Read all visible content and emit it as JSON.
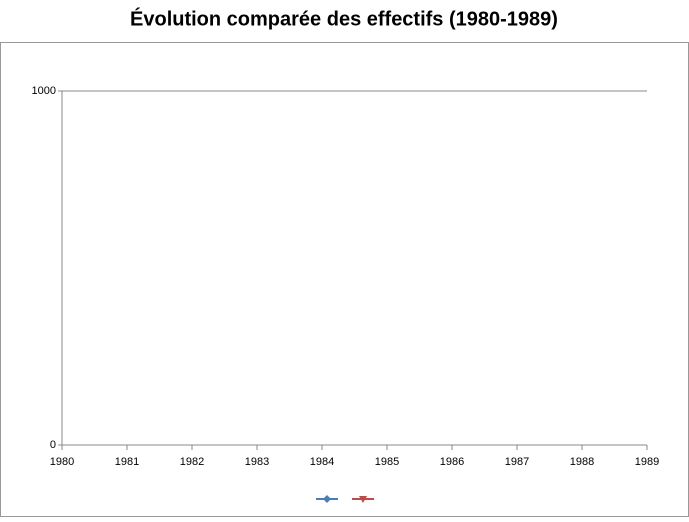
{
  "chart_data": {
    "type": "line",
    "title": "Évolution comparée des effectifs (1980-1989)",
    "x": [
      1980,
      1981,
      1982,
      1983,
      1984,
      1985,
      1986,
      1987,
      1988,
      1989
    ],
    "series": [
      {
        "color": "#4a7ebb",
        "marker": "diamond",
        "values": [
          null,
          null,
          null,
          null,
          null,
          null,
          null,
          null,
          null,
          null
        ]
      },
      {
        "color": "#be4b48",
        "marker": "triangle-down",
        "values": [
          null,
          null,
          null,
          null,
          null,
          null,
          null,
          null,
          null,
          null
        ]
      }
    ],
    "xlim": [
      1980,
      1989
    ],
    "xticks": [
      1980,
      1981,
      1982,
      1983,
      1984,
      1985,
      1986,
      1987,
      1988,
      1989
    ],
    "ylim": [
      0,
      1000
    ],
    "yticks": [
      0,
      1000
    ],
    "grid": true,
    "legend": "bottom"
  }
}
